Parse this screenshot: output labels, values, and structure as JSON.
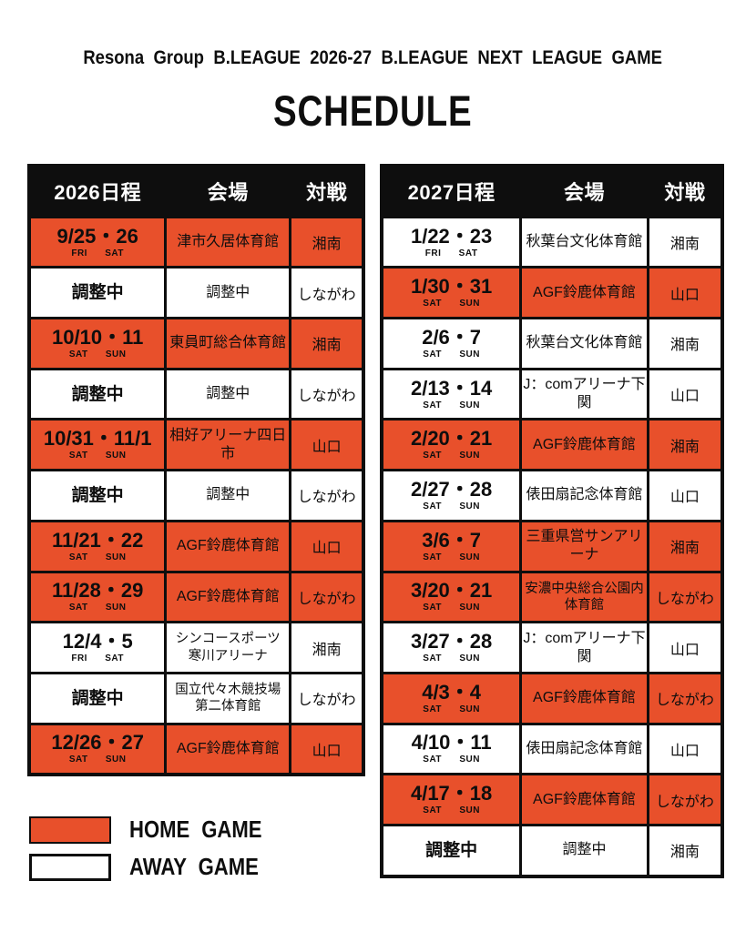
{
  "header": {
    "title": "Resona Group B.LEAGUE 2026-27 B.LEAGUE NEXT LEAGUE GAME",
    "heading": "SCHEDULE"
  },
  "colors": {
    "home_orange": "#E8502B",
    "away_white": "#FFFFFF",
    "ink_black": "#0E0E0E"
  },
  "tables": [
    {
      "id": "table-2026",
      "headers": [
        "2026日程",
        "会場",
        "対戦"
      ],
      "rows": [
        {
          "date": "9/25・26",
          "days": "FRI SAT",
          "venue": "津市久居体育館",
          "opponent": "湘南",
          "type": "home"
        },
        {
          "date": "調整中",
          "days": "",
          "venue": "調整中",
          "opponent": "しながわ",
          "type": "away"
        },
        {
          "date": "10/10・11",
          "days": "SAT SUN",
          "venue": "東員町総合体育館",
          "opponent": "湘南",
          "type": "home"
        },
        {
          "date": "調整中",
          "days": "",
          "venue": "調整中",
          "opponent": "しながわ",
          "type": "away"
        },
        {
          "date": "10/31・11/1",
          "days": "SAT SUN",
          "venue": "相好アリーナ四日市",
          "opponent": "山口",
          "type": "home"
        },
        {
          "date": "調整中",
          "days": "",
          "venue": "調整中",
          "opponent": "しながわ",
          "type": "away"
        },
        {
          "date": "11/21・22",
          "days": "SAT SUN",
          "venue": "AGF鈴鹿体育館",
          "opponent": "山口",
          "type": "home"
        },
        {
          "date": "11/28・29",
          "days": "SAT SUN",
          "venue": "AGF鈴鹿体育館",
          "opponent": "しながわ",
          "type": "home"
        },
        {
          "date": "12/4・5",
          "days": "FRI SAT",
          "venue": "シンコースポーツ\n寒川アリーナ",
          "opponent": "湘南",
          "type": "away"
        },
        {
          "date": "調整中",
          "days": "",
          "venue": "国立代々木競技場\n第二体育館",
          "opponent": "しながわ",
          "type": "away"
        },
        {
          "date": "12/26・27",
          "days": "SAT SUN",
          "venue": "AGF鈴鹿体育館",
          "opponent": "山口",
          "type": "home"
        }
      ]
    },
    {
      "id": "table-2027",
      "headers": [
        "2027日程",
        "会場",
        "対戦"
      ],
      "rows": [
        {
          "date": "1/22・23",
          "days": "FRI SAT",
          "venue": "秋葉台文化体育館",
          "opponent": "湘南",
          "type": "away"
        },
        {
          "date": "1/30・31",
          "days": "SAT SUN",
          "venue": "AGF鈴鹿体育館",
          "opponent": "山口",
          "type": "home"
        },
        {
          "date": "2/6・7",
          "days": "SAT SUN",
          "venue": "秋葉台文化体育館",
          "opponent": "湘南",
          "type": "away"
        },
        {
          "date": "2/13・14",
          "days": "SAT SUN",
          "venue": "J：comアリーナ下関",
          "opponent": "山口",
          "type": "away"
        },
        {
          "date": "2/20・21",
          "days": "SAT SUN",
          "venue": "AGF鈴鹿体育館",
          "opponent": "湘南",
          "type": "home"
        },
        {
          "date": "2/27・28",
          "days": "SAT SUN",
          "venue": "俵田扇記念体育館",
          "opponent": "山口",
          "type": "away"
        },
        {
          "date": "3/6・7",
          "days": "SAT SUN",
          "venue": "三重県営サンアリーナ",
          "opponent": "湘南",
          "type": "home"
        },
        {
          "date": "3/20・21",
          "days": "SAT SUN",
          "venue": "安濃中央総合公園内\n体育館",
          "opponent": "しながわ",
          "type": "home"
        },
        {
          "date": "3/27・28",
          "days": "SAT SUN",
          "venue": "J：comアリーナ下関",
          "opponent": "山口",
          "type": "away"
        },
        {
          "date": "4/3・4",
          "days": "SAT SUN",
          "venue": "AGF鈴鹿体育館",
          "opponent": "しながわ",
          "type": "home"
        },
        {
          "date": "4/10・11",
          "days": "SAT SUN",
          "venue": "俵田扇記念体育館",
          "opponent": "山口",
          "type": "away"
        },
        {
          "date": "4/17・18",
          "days": "SAT SUN",
          "venue": "AGF鈴鹿体育館",
          "opponent": "しながわ",
          "type": "home"
        },
        {
          "date": "調整中",
          "days": "",
          "venue": "調整中",
          "opponent": "湘南",
          "type": "away"
        }
      ]
    }
  ],
  "legend": {
    "items": [
      {
        "swatch": "home",
        "label": "HOME GAME"
      },
      {
        "swatch": "away",
        "label": "AWAY GAME"
      }
    ]
  }
}
